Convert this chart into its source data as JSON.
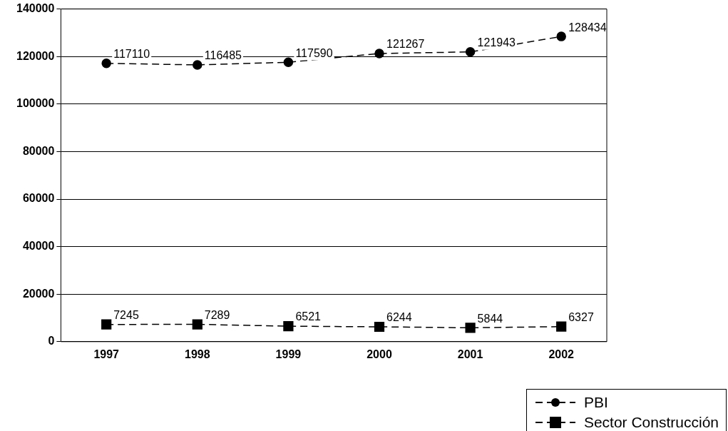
{
  "chart_data": {
    "type": "line",
    "categories": [
      "1997",
      "1998",
      "1999",
      "2000",
      "2001",
      "2002"
    ],
    "series": [
      {
        "name": "PBI",
        "color": "#000000",
        "marker": "circle",
        "line_style": "dashed",
        "values": [
          117110,
          116485,
          117590,
          121267,
          121943,
          128434
        ]
      },
      {
        "name": "Sector Construcción",
        "color": "#000000",
        "marker": "square",
        "line_style": "dashed",
        "values": [
          7245,
          7289,
          6521,
          6244,
          5844,
          6327
        ]
      }
    ],
    "ylim": [
      0,
      140000
    ],
    "yticks": [
      0,
      20000,
      40000,
      60000,
      80000,
      100000,
      120000,
      140000
    ],
    "grid": "y",
    "legend": "bottom right",
    "data_labels": true
  }
}
